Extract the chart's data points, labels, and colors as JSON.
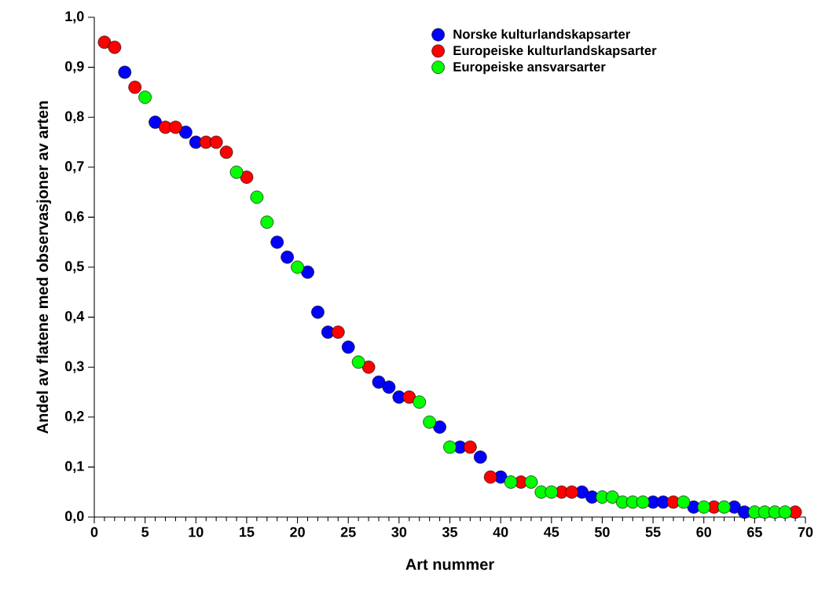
{
  "chart_data": {
    "type": "scatter",
    "xlabel": "Art nummer",
    "ylabel": "Andel av flatene med observasjoner av arten",
    "xlim": [
      0,
      70
    ],
    "ylim": [
      0,
      1.0
    ],
    "xticks": [
      0,
      5,
      10,
      15,
      20,
      25,
      30,
      35,
      40,
      45,
      50,
      55,
      60,
      65,
      70
    ],
    "yticks": [
      {
        "value": 0,
        "label": "0,0"
      },
      {
        "value": 0.1,
        "label": "0,1"
      },
      {
        "value": 0.2,
        "label": "0,2"
      },
      {
        "value": 0.3,
        "label": "0,3"
      },
      {
        "value": 0.4,
        "label": "0,4"
      },
      {
        "value": 0.5,
        "label": "0,5"
      },
      {
        "value": 0.6,
        "label": "0,6"
      },
      {
        "value": 0.7,
        "label": "0,7"
      },
      {
        "value": 0.8,
        "label": "0,8"
      },
      {
        "value": 0.9,
        "label": "0,9"
      },
      {
        "value": 1.0,
        "label": "1,0"
      }
    ],
    "grid": false,
    "legend": "top right",
    "marker": "circle",
    "series": [
      {
        "name": "Norske kulturlandskapsarter",
        "color": "#0000ff",
        "x": [
          3,
          6,
          9,
          10,
          18,
          19,
          21,
          22,
          23,
          25,
          28,
          29,
          30,
          34,
          36,
          38,
          40,
          48,
          49,
          55,
          56,
          59,
          63,
          64
        ],
        "values": [
          0.89,
          0.79,
          0.77,
          0.75,
          0.55,
          0.52,
          0.49,
          0.41,
          0.37,
          0.34,
          0.27,
          0.26,
          0.24,
          0.18,
          0.14,
          0.12,
          0.08,
          0.05,
          0.04,
          0.03,
          0.03,
          0.02,
          0.02,
          0.01
        ]
      },
      {
        "name": "Europeiske kulturlandskapsarter",
        "color": "#ff0000",
        "x": [
          1,
          2,
          4,
          7,
          8,
          11,
          12,
          13,
          15,
          24,
          27,
          31,
          37,
          39,
          42,
          46,
          47,
          57,
          61,
          69
        ],
        "values": [
          0.95,
          0.94,
          0.86,
          0.78,
          0.78,
          0.75,
          0.75,
          0.73,
          0.68,
          0.37,
          0.3,
          0.24,
          0.14,
          0.08,
          0.07,
          0.05,
          0.05,
          0.03,
          0.02,
          0.01
        ]
      },
      {
        "name": "Europeiske ansvarsarter",
        "color": "#00ff00",
        "x": [
          5,
          14,
          16,
          17,
          20,
          26,
          32,
          33,
          35,
          41,
          43,
          44,
          45,
          50,
          51,
          52,
          53,
          54,
          58,
          60,
          62,
          65,
          66,
          67,
          68
        ],
        "values": [
          0.84,
          0.69,
          0.64,
          0.59,
          0.5,
          0.31,
          0.23,
          0.19,
          0.14,
          0.07,
          0.07,
          0.05,
          0.05,
          0.04,
          0.04,
          0.03,
          0.03,
          0.03,
          0.03,
          0.02,
          0.02,
          0.01,
          0.01,
          0.01,
          0.01
        ]
      }
    ]
  }
}
